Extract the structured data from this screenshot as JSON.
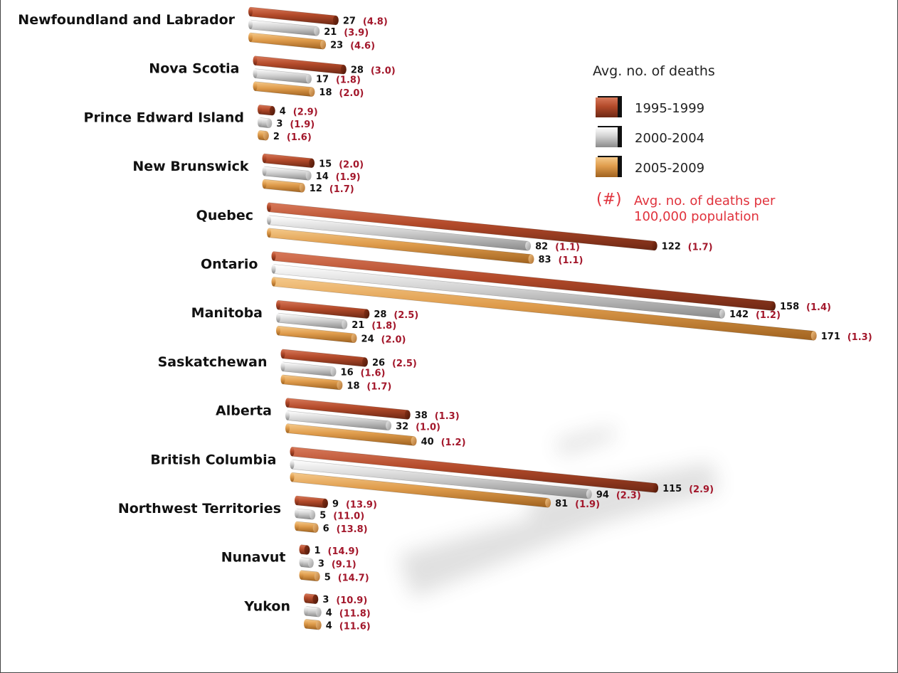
{
  "chart_data": {
    "type": "bar",
    "title": "",
    "xlabel": "",
    "ylabel": "",
    "legend_title": "Avg. no. of deaths",
    "legend_rate_symbol": "(#)",
    "legend_rate_label": "Avg. no. of deaths per 100,000 population",
    "legend_placement": "top-right",
    "grid": false,
    "categories": [
      "Newfoundland and Labrador",
      "Nova Scotia",
      "Prince Edward Island",
      "New Brunswick",
      "Quebec",
      "Ontario",
      "Manitoba",
      "Saskatchewan",
      "Alberta",
      "British Columbia",
      "Northwest Territories",
      "Nunavut",
      "Yukon"
    ],
    "series": [
      {
        "name": "1995-1999",
        "color": "#b34a2a",
        "values": [
          27,
          28,
          4,
          15,
          122,
          158,
          28,
          26,
          38,
          115,
          9,
          1,
          3
        ],
        "rate_labels": [
          "(4.8)",
          "(3.0)",
          "(2.9)",
          "(2.0)",
          "(1.7)",
          "(1.4)",
          "(2.5)",
          "(2.5)",
          "(1.3)",
          "(2.9)",
          "(13.9)",
          "(14.9)",
          "(10.9)"
        ]
      },
      {
        "name": "2000-2004",
        "color": "#c8c8c8",
        "values": [
          21,
          17,
          3,
          14,
          82,
          142,
          21,
          16,
          32,
          94,
          5,
          3,
          4
        ],
        "rate_labels": [
          "(3.9)",
          "(1.8)",
          "(1.9)",
          "(1.9)",
          "(1.1)",
          "(1.2)",
          "(1.8)",
          "(1.6)",
          "(1.0)",
          "(2.3)",
          "(11.0)",
          "(9.1)",
          "(11.8)"
        ]
      },
      {
        "name": "2005-2009",
        "color": "#e0a050",
        "values": [
          23,
          18,
          2,
          12,
          83,
          171,
          24,
          18,
          40,
          81,
          6,
          5,
          4
        ],
        "rate_labels": [
          "(4.6)",
          "(2.0)",
          "(1.6)",
          "(1.7)",
          "(1.1)",
          "(1.3)",
          "(2.0)",
          "(1.7)",
          "(1.2)",
          "(1.9)",
          "(13.8)",
          "(14.7)",
          "(11.6)"
        ]
      }
    ]
  }
}
